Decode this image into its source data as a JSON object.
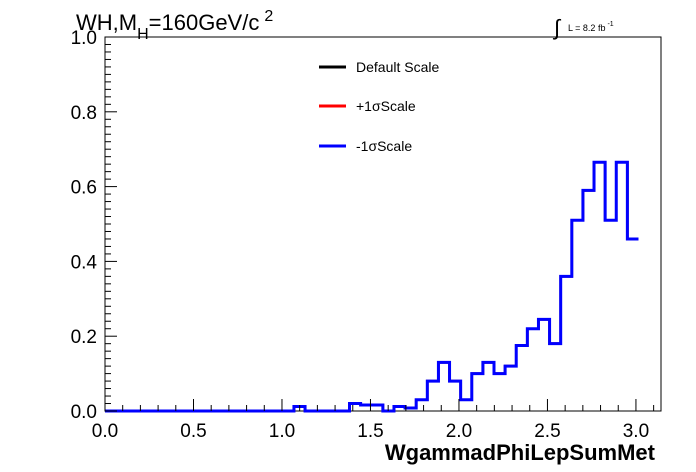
{
  "chart_data": {
    "type": "line",
    "title_parts": {
      "main": "WH,M",
      "sub": "H",
      "rest": "=160GeV/c",
      "sup": "2"
    },
    "lumi": {
      "symbol": "∫",
      "text": "L = 8.2 fb",
      "sup": "-1"
    },
    "xlabel": "WgammadPhiLepSumMet",
    "xlim": [
      0,
      3.1416
    ],
    "ylim": [
      0,
      1.0
    ],
    "x_ticks": [
      "0.0",
      "0.5",
      "1.0",
      "1.5",
      "2.0",
      "2.5",
      "3.0"
    ],
    "y_ticks": [
      "0.0",
      "0.2",
      "0.4",
      "0.6",
      "0.8",
      "1.0"
    ],
    "bin_width": 0.0628,
    "bin_values": [
      0,
      0,
      0,
      0,
      0,
      0,
      0,
      0,
      0,
      0,
      0,
      0,
      0,
      0,
      0,
      0,
      0,
      0.012,
      0,
      0,
      0,
      0,
      0.02,
      0.016,
      0.016,
      0,
      0.012,
      0.008,
      0.03,
      0.08,
      0.13,
      0.08,
      0.03,
      0.1,
      0.13,
      0.1,
      0.12,
      0.175,
      0.22,
      0.245,
      0.18,
      0.36,
      0.51,
      0.59,
      0.665,
      0.51,
      0.665,
      0.46
    ],
    "series": [
      {
        "name": "Default Scale",
        "color": "#000000"
      },
      {
        "name": "+1σScale",
        "color": "#ff0000"
      },
      {
        "name": "-1σScale",
        "color": "#0000ff"
      }
    ],
    "legend_position": "top-right",
    "grid": false
  }
}
